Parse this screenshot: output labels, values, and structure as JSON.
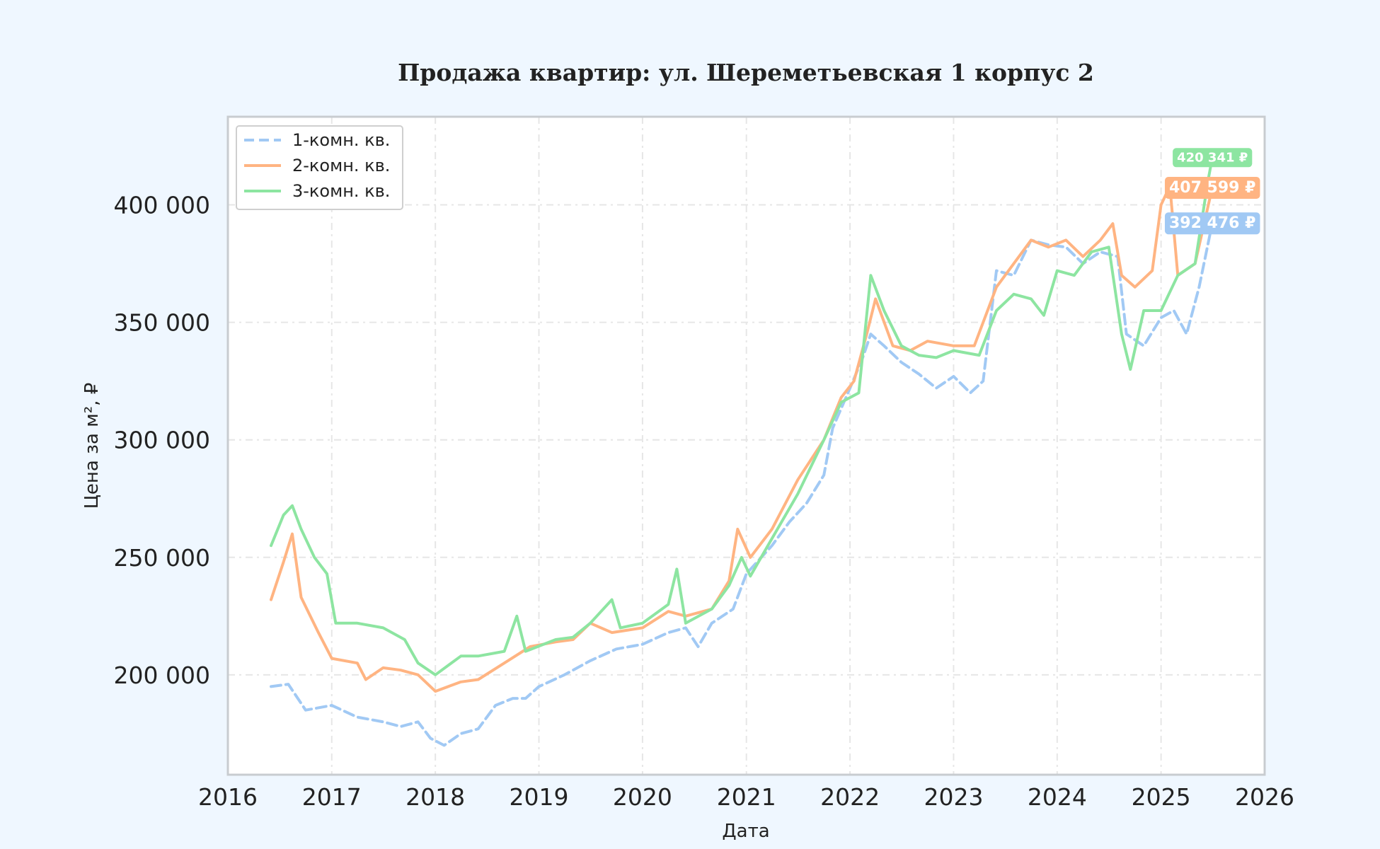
{
  "chart_data": {
    "type": "line",
    "title": "Продажа квартир: ул. Шереметьевская 1 корпус 2",
    "xlabel": "Дата",
    "ylabel": "Цена за м², ₽",
    "xlim": [
      "2016-01-01",
      "2026-01-01"
    ],
    "ylim": [
      157500,
      437500
    ],
    "x_ticks": [
      "2016",
      "2017",
      "2018",
      "2019",
      "2020",
      "2021",
      "2022",
      "2023",
      "2024",
      "2025",
      "2026"
    ],
    "y_ticks": [
      {
        "value": 200000,
        "label": "200 000"
      },
      {
        "value": 250000,
        "label": "250 000"
      },
      {
        "value": 300000,
        "label": "300 000"
      },
      {
        "value": 350000,
        "label": "350 000"
      },
      {
        "value": 400000,
        "label": "400 000"
      }
    ],
    "grid": true,
    "legend_position": "top-left",
    "series": [
      {
        "name": "1-комн. кв.",
        "color": "#a1c9f4",
        "dashed": true,
        "last_value_label": "392 476 ₽",
        "points": [
          [
            "2016-06-01",
            195000
          ],
          [
            "2016-08-01",
            196000
          ],
          [
            "2016-10-01",
            185000
          ],
          [
            "2017-01-01",
            187000
          ],
          [
            "2017-04-01",
            182000
          ],
          [
            "2017-07-01",
            180000
          ],
          [
            "2017-09-01",
            178000
          ],
          [
            "2017-11-01",
            180000
          ],
          [
            "2017-12-15",
            173000
          ],
          [
            "2018-02-01",
            170000
          ],
          [
            "2018-04-01",
            175000
          ],
          [
            "2018-06-01",
            177000
          ],
          [
            "2018-08-01",
            187000
          ],
          [
            "2018-10-01",
            190000
          ],
          [
            "2018-11-15",
            190000
          ],
          [
            "2019-01-01",
            195000
          ],
          [
            "2019-04-01",
            200000
          ],
          [
            "2019-07-01",
            206000
          ],
          [
            "2019-10-01",
            211000
          ],
          [
            "2020-01-01",
            213000
          ],
          [
            "2020-04-01",
            218000
          ],
          [
            "2020-06-01",
            220000
          ],
          [
            "2020-07-15",
            212000
          ],
          [
            "2020-09-01",
            222000
          ],
          [
            "2020-11-15",
            228000
          ],
          [
            "2021-01-01",
            243000
          ],
          [
            "2021-04-01",
            255000
          ],
          [
            "2021-06-01",
            265000
          ],
          [
            "2021-08-01",
            273000
          ],
          [
            "2021-10-01",
            285000
          ],
          [
            "2021-11-01",
            305000
          ],
          [
            "2022-01-01",
            322000
          ],
          [
            "2022-02-15",
            335000
          ],
          [
            "2022-03-15",
            345000
          ],
          [
            "2022-05-01",
            340000
          ],
          [
            "2022-07-01",
            333000
          ],
          [
            "2022-09-01",
            328000
          ],
          [
            "2022-11-01",
            322000
          ],
          [
            "2023-01-01",
            327000
          ],
          [
            "2023-03-01",
            320000
          ],
          [
            "2023-04-15",
            325000
          ],
          [
            "2023-06-01",
            372000
          ],
          [
            "2023-08-01",
            370000
          ],
          [
            "2023-10-01",
            385000
          ],
          [
            "2023-12-01",
            383000
          ],
          [
            "2024-02-01",
            382000
          ],
          [
            "2024-04-01",
            375000
          ],
          [
            "2024-06-01",
            380000
          ],
          [
            "2024-08-01",
            378000
          ],
          [
            "2024-09-01",
            345000
          ],
          [
            "2024-11-01",
            340000
          ],
          [
            "2025-01-01",
            352000
          ],
          [
            "2025-02-15",
            355000
          ],
          [
            "2025-04-01",
            345000
          ],
          [
            "2025-05-15",
            365000
          ],
          [
            "2025-07-01",
            392476
          ]
        ]
      },
      {
        "name": "2-комн. кв.",
        "color": "#ffb482",
        "dashed": false,
        "last_value_label": "407 599 ₽",
        "points": [
          [
            "2016-06-01",
            232000
          ],
          [
            "2016-07-15",
            248000
          ],
          [
            "2016-08-15",
            260000
          ],
          [
            "2016-09-15",
            233000
          ],
          [
            "2016-11-15",
            218000
          ],
          [
            "2017-01-01",
            207000
          ],
          [
            "2017-04-01",
            205000
          ],
          [
            "2017-05-01",
            198000
          ],
          [
            "2017-07-01",
            203000
          ],
          [
            "2017-09-01",
            202000
          ],
          [
            "2017-11-01",
            200000
          ],
          [
            "2018-01-01",
            193000
          ],
          [
            "2018-04-01",
            197000
          ],
          [
            "2018-06-01",
            198000
          ],
          [
            "2018-09-01",
            205000
          ],
          [
            "2018-12-01",
            212000
          ],
          [
            "2019-03-01",
            214000
          ],
          [
            "2019-05-01",
            215000
          ],
          [
            "2019-07-01",
            222000
          ],
          [
            "2019-09-15",
            218000
          ],
          [
            "2020-01-01",
            220000
          ],
          [
            "2020-04-01",
            227000
          ],
          [
            "2020-06-01",
            225000
          ],
          [
            "2020-09-01",
            228000
          ],
          [
            "2020-11-01",
            240000
          ],
          [
            "2020-12-01",
            262000
          ],
          [
            "2021-01-15",
            250000
          ],
          [
            "2021-04-01",
            262000
          ],
          [
            "2021-07-01",
            283000
          ],
          [
            "2021-10-01",
            300000
          ],
          [
            "2021-12-01",
            318000
          ],
          [
            "2022-01-15",
            325000
          ],
          [
            "2022-03-01",
            345000
          ],
          [
            "2022-04-01",
            360000
          ],
          [
            "2022-06-01",
            340000
          ],
          [
            "2022-08-01",
            338000
          ],
          [
            "2022-10-01",
            342000
          ],
          [
            "2023-01-01",
            340000
          ],
          [
            "2023-03-15",
            340000
          ],
          [
            "2023-06-01",
            365000
          ],
          [
            "2023-08-01",
            375000
          ],
          [
            "2023-10-01",
            385000
          ],
          [
            "2023-12-01",
            382000
          ],
          [
            "2024-02-01",
            385000
          ],
          [
            "2024-04-01",
            378000
          ],
          [
            "2024-06-01",
            385000
          ],
          [
            "2024-07-15",
            392000
          ],
          [
            "2024-08-15",
            370000
          ],
          [
            "2024-10-01",
            365000
          ],
          [
            "2024-12-01",
            372000
          ],
          [
            "2025-01-01",
            400000
          ],
          [
            "2025-02-01",
            408000
          ],
          [
            "2025-03-01",
            370000
          ],
          [
            "2025-05-01",
            375000
          ],
          [
            "2025-07-01",
            407599
          ]
        ]
      },
      {
        "name": "3-комн. кв.",
        "color": "#8de5a1",
        "dashed": false,
        "last_value_label": "420 341 ₽",
        "points": [
          [
            "2016-06-01",
            255000
          ],
          [
            "2016-07-15",
            268000
          ],
          [
            "2016-08-15",
            272000
          ],
          [
            "2016-09-15",
            262000
          ],
          [
            "2016-11-01",
            250000
          ],
          [
            "2016-12-15",
            243000
          ],
          [
            "2017-01-15",
            222000
          ],
          [
            "2017-04-01",
            222000
          ],
          [
            "2017-07-01",
            220000
          ],
          [
            "2017-09-15",
            215000
          ],
          [
            "2017-11-01",
            205000
          ],
          [
            "2018-01-01",
            200000
          ],
          [
            "2018-04-01",
            208000
          ],
          [
            "2018-06-01",
            208000
          ],
          [
            "2018-09-01",
            210000
          ],
          [
            "2018-10-15",
            225000
          ],
          [
            "2018-11-15",
            210000
          ],
          [
            "2019-03-01",
            215000
          ],
          [
            "2019-05-01",
            216000
          ],
          [
            "2019-07-01",
            222000
          ],
          [
            "2019-09-15",
            232000
          ],
          [
            "2019-10-15",
            220000
          ],
          [
            "2020-01-01",
            222000
          ],
          [
            "2020-04-01",
            230000
          ],
          [
            "2020-05-01",
            245000
          ],
          [
            "2020-06-01",
            222000
          ],
          [
            "2020-09-01",
            228000
          ],
          [
            "2020-11-01",
            238000
          ],
          [
            "2020-12-15",
            250000
          ],
          [
            "2021-01-15",
            242000
          ],
          [
            "2021-04-01",
            258000
          ],
          [
            "2021-07-01",
            277000
          ],
          [
            "2021-10-01",
            300000
          ],
          [
            "2021-12-01",
            316000
          ],
          [
            "2022-02-01",
            320000
          ],
          [
            "2022-03-15",
            370000
          ],
          [
            "2022-05-01",
            355000
          ],
          [
            "2022-07-01",
            340000
          ],
          [
            "2022-09-01",
            336000
          ],
          [
            "2022-11-01",
            335000
          ],
          [
            "2023-01-01",
            338000
          ],
          [
            "2023-04-01",
            336000
          ],
          [
            "2023-06-01",
            355000
          ],
          [
            "2023-08-01",
            362000
          ],
          [
            "2023-10-01",
            360000
          ],
          [
            "2023-11-15",
            353000
          ],
          [
            "2024-01-01",
            372000
          ],
          [
            "2024-03-01",
            370000
          ],
          [
            "2024-05-01",
            380000
          ],
          [
            "2024-07-01",
            382000
          ],
          [
            "2024-08-15",
            345000
          ],
          [
            "2024-09-15",
            330000
          ],
          [
            "2024-11-01",
            355000
          ],
          [
            "2025-01-01",
            355000
          ],
          [
            "2025-03-01",
            370000
          ],
          [
            "2025-05-01",
            375000
          ],
          [
            "2025-06-15",
            410000
          ],
          [
            "2025-07-01",
            420341
          ]
        ]
      }
    ]
  }
}
